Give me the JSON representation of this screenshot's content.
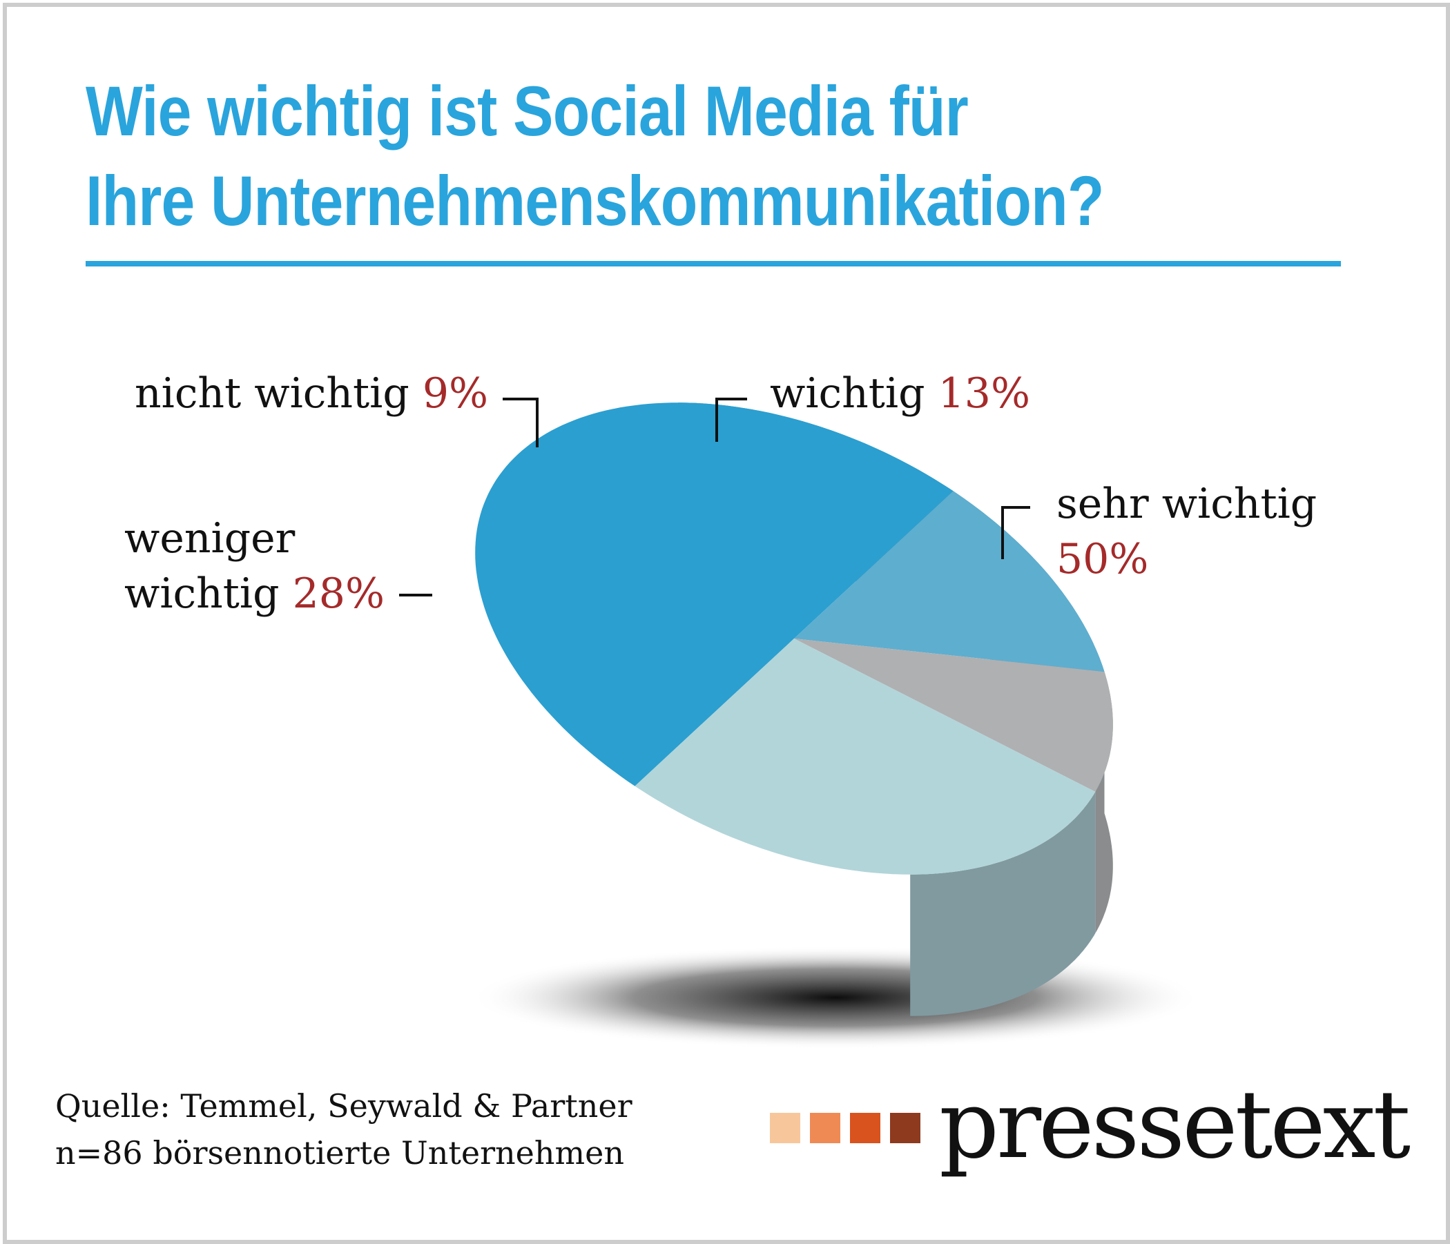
{
  "title_line1": "Wie wichtig ist Social Media für",
  "title_line2": "Ihre Unternehmenskommunikation?",
  "chart_data": {
    "type": "pie",
    "title": "Wie wichtig ist Social Media für Ihre Unternehmenskommunikation?",
    "categories": [
      "sehr wichtig",
      "wichtig",
      "nicht wichtig",
      "weniger wichtig"
    ],
    "values": [
      50,
      13,
      9,
      28
    ],
    "unit": "%",
    "slices": [
      {
        "name": "sehr wichtig",
        "value": 50,
        "label": "50%",
        "color": "#2b9fd0",
        "side_color": "#237ea8"
      },
      {
        "name": "wichtig",
        "value": 13,
        "label": "13%",
        "color": "#5eaecf",
        "side_color": "#4a8eab"
      },
      {
        "name": "nicht wichtig",
        "value": 9,
        "label": "9%",
        "color": "#afb0b2",
        "side_color": "#8a8c8e"
      },
      {
        "name": "weniger wichtig",
        "value": 28,
        "label": "28%",
        "color": "#b2d5d9",
        "side_color": "#809aa0"
      }
    ]
  },
  "labels": {
    "nicht_wichtig": {
      "text": "nicht wichtig",
      "pct": "9%"
    },
    "wichtig": {
      "text": "wichtig",
      "pct": "13%"
    },
    "sehr_wichtig": {
      "text": "sehr wichtig",
      "pct": "50%"
    },
    "weniger_wichtig": {
      "text_line1": "weniger",
      "text_line2": "wichtig",
      "pct": "28%"
    }
  },
  "source": {
    "line1": "Quelle: Temmel, Seywald & Partner",
    "line2": "n=86 börsennotierte Unternehmen"
  },
  "logo": {
    "text": "pressetext",
    "square_colors": [
      "#f7c79b",
      "#ef8a55",
      "#d9531e",
      "#8e3a1f"
    ]
  }
}
